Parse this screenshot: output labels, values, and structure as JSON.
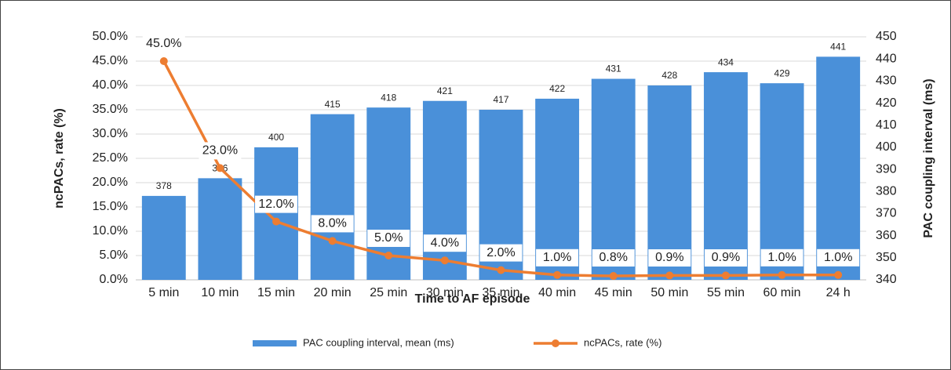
{
  "chart_data": {
    "type": "bar",
    "x_label": "Time to AF episode",
    "y_label": "ncPACs, rate (%)",
    "y2_label": "PAC coupling interval (ms)",
    "categories": [
      "5 min",
      "10 min",
      "15 min",
      "20 min",
      "25 min",
      "30 min",
      "35 min",
      "40 min",
      "45 min",
      "50 min",
      "55 min",
      "60 min",
      "24 h"
    ],
    "series": [
      {
        "name": "PAC coupling interval, mean (ms)",
        "type": "bar",
        "axis": "y2",
        "color": "#4a90d9",
        "values": [
          378,
          386,
          400,
          415,
          418,
          421,
          417,
          422,
          431,
          428,
          434,
          429,
          441
        ]
      },
      {
        "name": "ncPACs, rate (%)",
        "type": "line",
        "axis": "y",
        "color": "#ed7d31",
        "values": [
          45,
          23,
          12,
          8,
          5,
          4,
          2,
          1,
          0.8,
          0.9,
          0.9,
          1,
          1
        ],
        "value_labels": [
          "45.0%",
          "23.0%",
          "12.0%",
          "8.0%",
          "5.0%",
          "4.0%",
          "2.0%",
          "1.0%",
          "0.8%",
          "0.9%",
          "0.9%",
          "1.0%",
          "1.0%"
        ]
      }
    ],
    "ylim": [
      0,
      50
    ],
    "yticks": [
      {
        "value": 0,
        "label": "0.0%"
      },
      {
        "value": 5,
        "label": "5.0%"
      },
      {
        "value": 10,
        "label": "10.0%"
      },
      {
        "value": 15,
        "label": "15.0%"
      },
      {
        "value": 20,
        "label": "20.0%"
      },
      {
        "value": 25,
        "label": "25.0%"
      },
      {
        "value": 30,
        "label": "30.0%"
      },
      {
        "value": 35,
        "label": "35.0%"
      },
      {
        "value": 40,
        "label": "40.0%"
      },
      {
        "value": 45,
        "label": "45.0%"
      },
      {
        "value": 50,
        "label": "50.0%"
      }
    ],
    "y2lim": [
      340,
      450
    ],
    "y2ticks": [
      340,
      350,
      360,
      370,
      380,
      390,
      400,
      410,
      420,
      430,
      440,
      450
    ],
    "grid": true,
    "legend": "bottom"
  }
}
